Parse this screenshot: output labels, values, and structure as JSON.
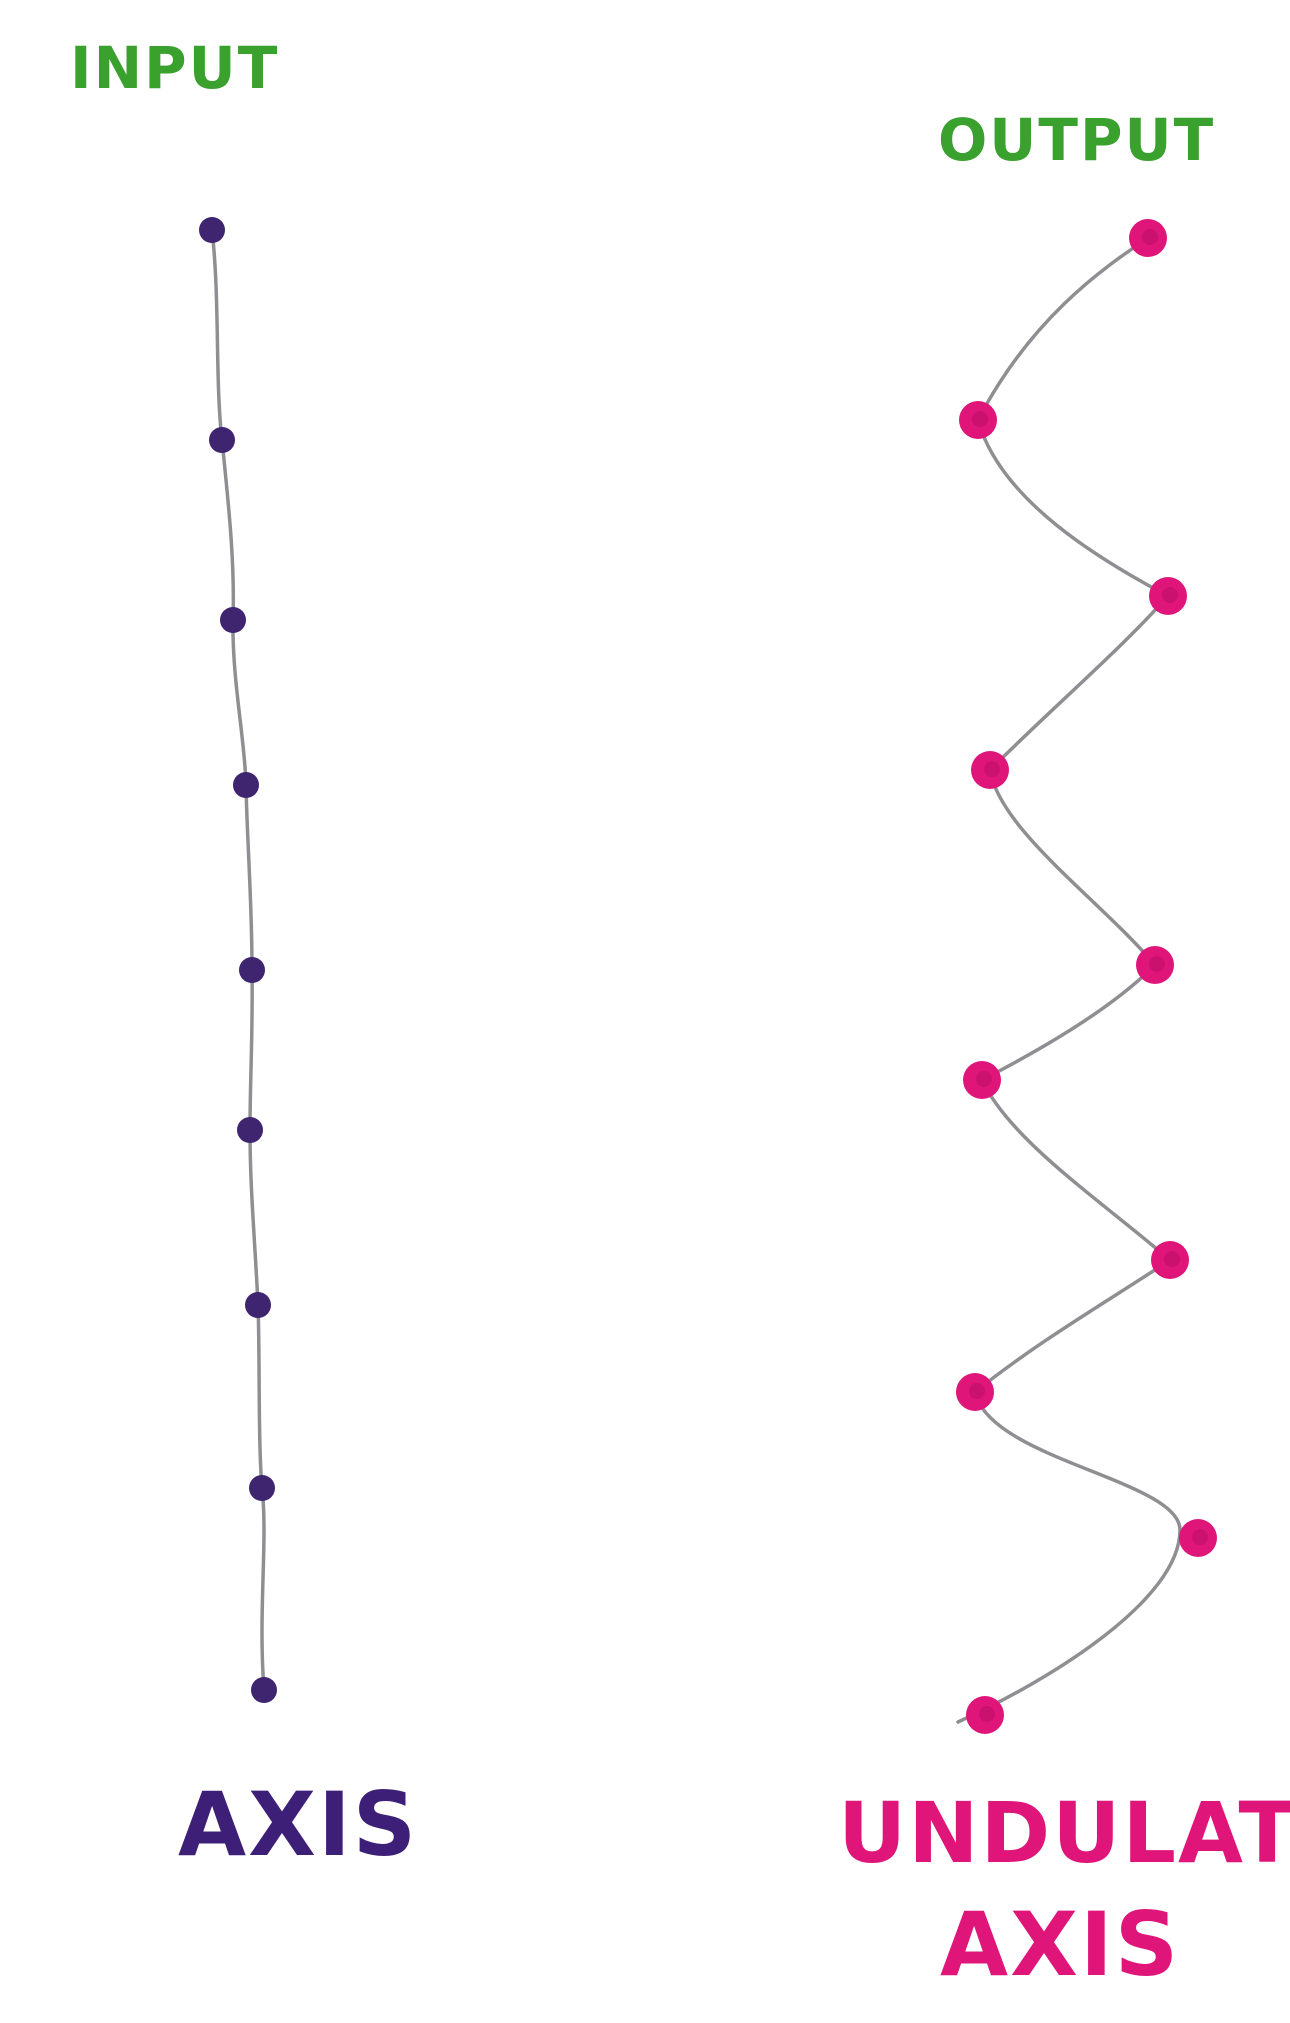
{
  "labels": {
    "input": "INPUT",
    "output": "OUTPUT",
    "axis": "AXIS",
    "undulated_line1": "UNDULATED",
    "undulated_line2": "AXIS"
  },
  "colors": {
    "label_green": "#3aa02e",
    "input_dot": "#3f2470",
    "output_dot": "#e0157a",
    "axis_label": "#3d1f78",
    "undulated_label": "#e0157a",
    "line": "#8f8f93"
  },
  "input_axis": {
    "point_count": 10
  },
  "output_axis": {
    "point_count": 10,
    "shape": "zigzag"
  }
}
